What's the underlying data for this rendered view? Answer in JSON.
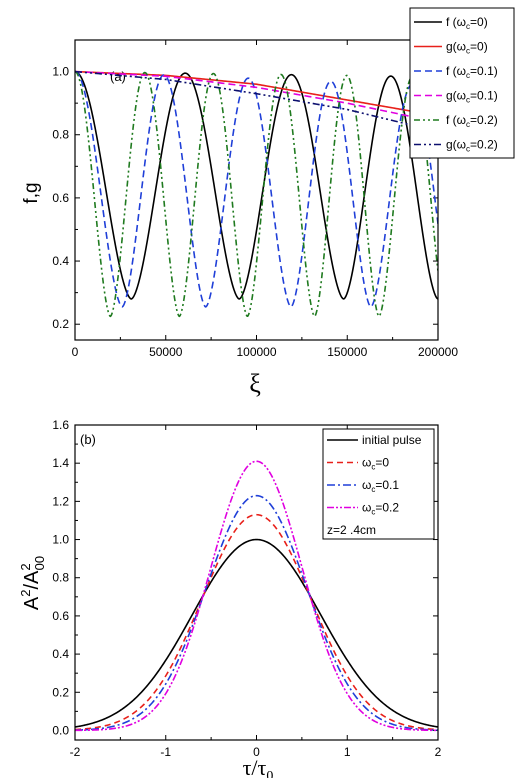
{
  "chart_data": [
    {
      "type": "line",
      "panel_label": "(a)",
      "xlabel": "ξ",
      "ylabel": "f,g",
      "xlim": [
        0,
        200000
      ],
      "ylim": [
        0.15,
        1.1
      ],
      "xticks": [
        0,
        50000,
        100000,
        150000,
        200000
      ],
      "xtick_labels": [
        "0",
        "50000",
        "100000",
        "150000",
        "200000"
      ],
      "yticks": [
        0.2,
        0.4,
        0.6,
        0.8,
        1.0
      ],
      "ytick_labels": [
        "0.2",
        "0.4",
        "0.6",
        "0.8",
        "1.0"
      ],
      "legend_position": "top-right (outside plot)",
      "legend": [
        {
          "prefix": "f (ω",
          "sub": "c",
          "suffix": "=0)"
        },
        {
          "prefix": "g(ω",
          "sub": "c",
          "suffix": "=0)"
        },
        {
          "prefix": "f (ω",
          "sub": "c",
          "suffix": "=0.1)"
        },
        {
          "prefix": "g(ω",
          "sub": "c",
          "suffix": "=0.1)"
        },
        {
          "prefix": "f (ω",
          "sub": "c",
          "suffix": "=0.2)"
        },
        {
          "prefix": "g(ω",
          "sub": "c",
          "suffix": "=0.2)"
        }
      ],
      "series": [
        {
          "name": "f (ωc=0)",
          "kind": "oscillation",
          "color": "#000000",
          "dash": "",
          "minima_x": [
            31000,
            90500,
            148000,
            200000
          ],
          "min_value": 0.28,
          "max_value": 0.985
        },
        {
          "name": "g(ωc=0)",
          "kind": "envelope",
          "color": "#e8201a",
          "dash": "",
          "x": [
            0,
            50000,
            100000,
            150000,
            200000
          ],
          "y": [
            1.0,
            0.988,
            0.96,
            0.91,
            0.86
          ]
        },
        {
          "name": "f (ωc=0.1)",
          "kind": "oscillation",
          "color": "#1f3fd8",
          "dash": "7,4",
          "minima_x": [
            26000,
            72000,
            119000,
            163000
          ],
          "min_value": 0.255,
          "max_value": 0.96
        },
        {
          "name": "g(ωc=0.1)",
          "kind": "envelope",
          "color": "#e000e0",
          "dash": "7,4",
          "x": [
            0,
            50000,
            100000,
            150000,
            200000
          ],
          "y": [
            1.0,
            0.985,
            0.95,
            0.9,
            0.84
          ]
        },
        {
          "name": "f (ωc=0.2)",
          "kind": "oscillation",
          "color": "#1f7a1f",
          "dash": "6,3,2,3,2,3",
          "minima_x": [
            19500,
            57500,
            95000,
            132000,
            167500
          ],
          "min_value": 0.225,
          "max_value": 0.985
        },
        {
          "name": "g(ωc=0.2)",
          "kind": "envelope",
          "color": "#0c0f6e",
          "dash": "7,3,2,3,2,3",
          "x": [
            0,
            50000,
            100000,
            150000,
            200000
          ],
          "y": [
            1.0,
            0.975,
            0.93,
            0.88,
            0.81
          ]
        }
      ]
    },
    {
      "type": "line",
      "panel_label": "(b)",
      "xlabel": "τ/τ₀",
      "ylabel": "A²/A₀₀²",
      "xlim": [
        -2,
        2
      ],
      "ylim": [
        -0.05,
        1.6
      ],
      "xticks": [
        -2,
        -1,
        0,
        1,
        2
      ],
      "xtick_labels": [
        "-2",
        "-1",
        "0",
        "1",
        "2"
      ],
      "yticks": [
        0.0,
        0.2,
        0.4,
        0.6,
        0.8,
        1.0,
        1.2,
        1.4,
        1.6
      ],
      "ytick_labels": [
        "0.0",
        "0.2",
        "0.4",
        "0.6",
        "0.8",
        "1.0",
        "1.2",
        "1.4",
        "1.6"
      ],
      "legend_position": "top-right",
      "legend": [
        {
          "prefix": "initial pulse",
          "sub": "",
          "suffix": ""
        },
        {
          "prefix": "ω",
          "sub": "c",
          "suffix": "=0"
        },
        {
          "prefix": "ω",
          "sub": "c",
          "suffix": "=0.1"
        },
        {
          "prefix": "ω",
          "sub": "c",
          "suffix": "=0.2"
        }
      ],
      "annotation": "z=2 .4cm",
      "series": [
        {
          "name": "initial pulse",
          "color": "#000000",
          "dash": "",
          "peak": 1.0,
          "width": 1.0
        },
        {
          "name": "ωc=0",
          "color": "#e8201a",
          "dash": "6,4",
          "peak": 1.13,
          "width": 0.853
        },
        {
          "name": "ωc=0.1",
          "color": "#1f3fd8",
          "dash": "8,3,2,3",
          "peak": 1.23,
          "width": 0.786
        },
        {
          "name": "ωc=0.2",
          "color": "#e000e0",
          "dash": "7,2,2,2,2,2",
          "peak": 1.41,
          "width": 0.709
        }
      ]
    }
  ]
}
